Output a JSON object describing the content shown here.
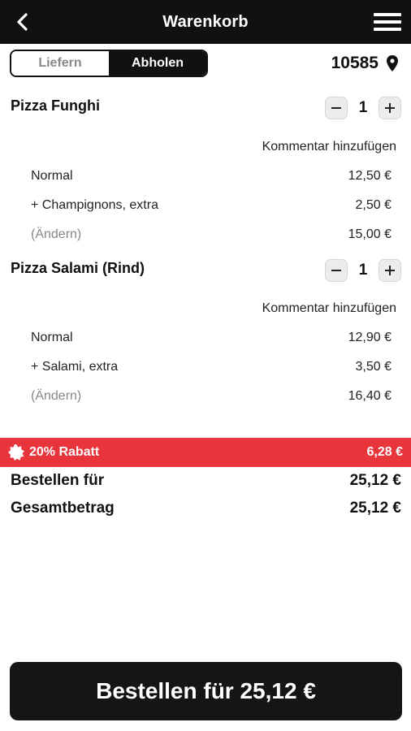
{
  "header": {
    "title": "Warenkorb",
    "back_icon": "back-arrow-icon",
    "menu_icon": "hamburger-menu-icon"
  },
  "mode_toggle": {
    "options": [
      "Liefern",
      "Abholen"
    ],
    "selected": "Abholen"
  },
  "location": {
    "zip": "10585",
    "icon": "location-pin-icon"
  },
  "cart_items": [
    {
      "name": "Pizza Funghi",
      "quantity": "1",
      "comment_label": "Kommentar hinzufügen",
      "lines": [
        {
          "label": "Normal",
          "price": "12,50 €"
        },
        {
          "label": "+ Champignons, extra",
          "price": "2,50 €"
        }
      ],
      "change_label": "(Ändern)",
      "subtotal": "15,00 €"
    },
    {
      "name": "Pizza Salami (Rind)",
      "quantity": "1",
      "comment_label": "Kommentar hinzufügen",
      "lines": [
        {
          "label": "Normal",
          "price": "12,90 €"
        },
        {
          "label": "+ Salami, extra",
          "price": "3,50 €"
        }
      ],
      "change_label": "(Ändern)",
      "subtotal": "16,40 €"
    }
  ],
  "discount": {
    "label": "20% Rabatt",
    "amount": "6,28 €",
    "color": "#e8343b"
  },
  "summary": {
    "order_for_label": "Bestellen für",
    "order_for_value": "25,12 €",
    "total_label": "Gesamtbetrag",
    "total_value": "25,12 €"
  },
  "order_button": {
    "label": "Bestellen für 25,12 €"
  }
}
